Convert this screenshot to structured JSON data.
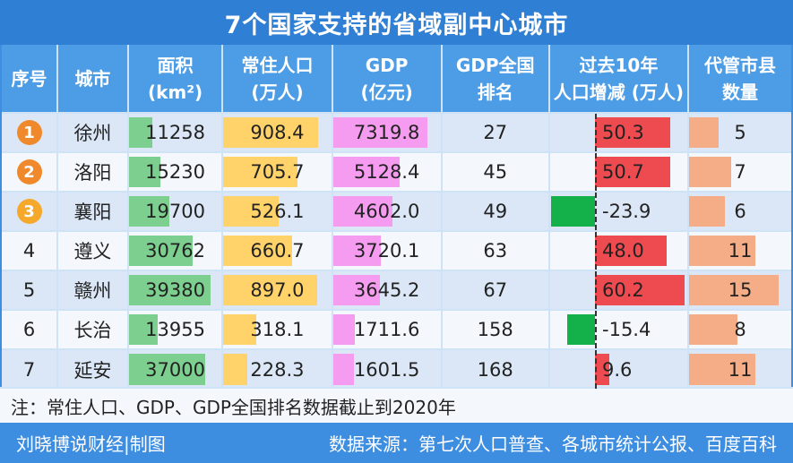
{
  "title": "7个国家支持的省域副中心城市",
  "headers": {
    "rank": [
      "序号"
    ],
    "city": [
      "城市"
    ],
    "area": [
      "面积",
      "(km²)"
    ],
    "pop": [
      "常住人口",
      "(万人)"
    ],
    "gdp": [
      "GDP",
      "(亿元)"
    ],
    "gdp_rank": [
      "GDP全国",
      "排名"
    ],
    "delta": [
      "过去10年",
      "人口增减 (万人)"
    ],
    "counties": [
      "代管市县",
      "数量"
    ]
  },
  "colors": {
    "area": "#7ccf8e",
    "pop": "#ffd36a",
    "gdp": "#f59cf0",
    "delta_pos": "#ee4b50",
    "delta_neg": "#14b04a",
    "counties": "#f5ad87",
    "badge": [
      "#f0892b",
      "#f0892b",
      "#f5a829"
    ]
  },
  "rows": [
    {
      "rank": "1",
      "city": "徐州",
      "area": "11258",
      "pop": "908.4",
      "gdp": "7319.8",
      "gdp_rank": "27",
      "delta": "50.3",
      "counties": "5"
    },
    {
      "rank": "2",
      "city": "洛阳",
      "area": "15230",
      "pop": "705.7",
      "gdp": "5128.4",
      "gdp_rank": "45",
      "delta": "50.7",
      "counties": "7"
    },
    {
      "rank": "3",
      "city": "襄阳",
      "area": "19700",
      "pop": "526.1",
      "gdp": "4602.0",
      "gdp_rank": "49",
      "delta": "-23.9",
      "counties": "6"
    },
    {
      "rank": "4",
      "city": "遵义",
      "area": "30762",
      "pop": "660.7",
      "gdp": "3720.1",
      "gdp_rank": "63",
      "delta": "48.0",
      "counties": "11"
    },
    {
      "rank": "5",
      "city": "赣州",
      "area": "39380",
      "pop": "897.0",
      "gdp": "3645.2",
      "gdp_rank": "67",
      "delta": "60.2",
      "counties": "15"
    },
    {
      "rank": "6",
      "city": "长治",
      "area": "13955",
      "pop": "318.1",
      "gdp": "1711.6",
      "gdp_rank": "158",
      "delta": "-15.4",
      "counties": "8"
    },
    {
      "rank": "7",
      "city": "延安",
      "area": "37000",
      "pop": "228.3",
      "gdp": "1601.5",
      "gdp_rank": "168",
      "delta": "9.6",
      "counties": "11"
    }
  ],
  "footnote": "注：常住人口、GDP、GDP全国排名数据截止到2020年",
  "footer": {
    "left": "刘晓博说财经|制图",
    "right": "数据来源：第七次人口普查、各城市统计公报、百度百科"
  }
}
